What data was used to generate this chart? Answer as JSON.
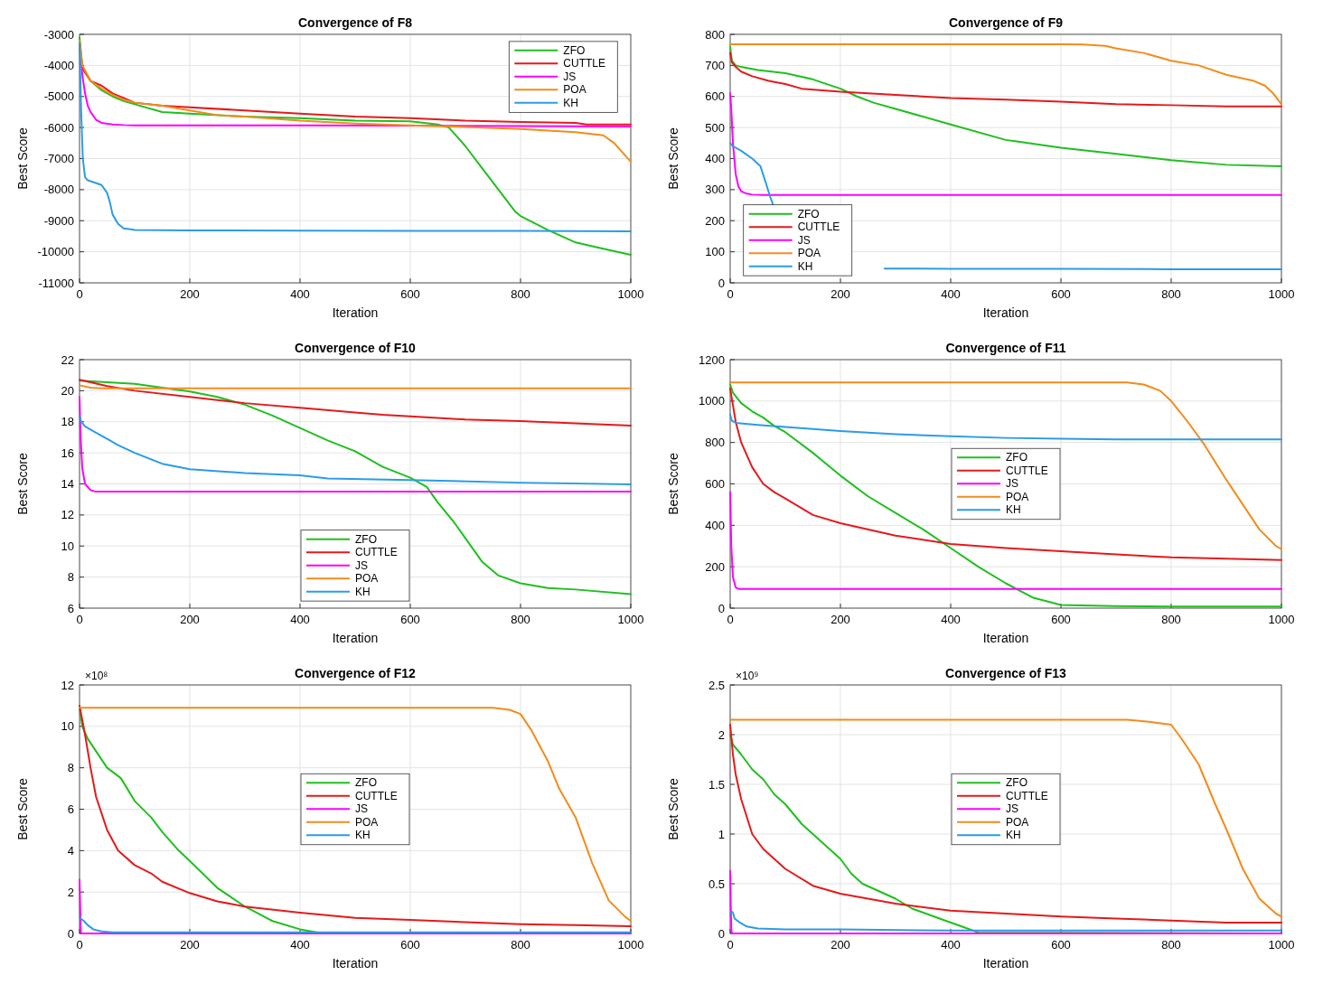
{
  "chart_data": [
    {
      "type": "line",
      "title": "Convergence of F8",
      "xlabel": "Iteration",
      "ylabel": "Best Score",
      "xlim": [
        0,
        1000
      ],
      "xticks": [
        0,
        200,
        400,
        600,
        800,
        1000
      ],
      "ylim": [
        -11000,
        -3000
      ],
      "yticks": [
        -11000,
        -10000,
        -9000,
        -8000,
        -7000,
        -6000,
        -5000,
        -4000,
        -3000
      ],
      "grid": true,
      "legend": "top right",
      "series": [
        {
          "name": "ZFO",
          "color": "#1fbf1f",
          "x": [
            0,
            5,
            20,
            40,
            60,
            80,
            100,
            150,
            200,
            300,
            400,
            500,
            600,
            650,
            670,
            700,
            730,
            760,
            790,
            800,
            850,
            900,
            950,
            1000
          ],
          "values": [
            -3100,
            -4000,
            -4500,
            -4800,
            -5000,
            -5150,
            -5250,
            -5500,
            -5550,
            -5650,
            -5700,
            -5780,
            -5800,
            -5900,
            -6000,
            -6600,
            -7300,
            -8000,
            -8700,
            -8850,
            -9300,
            -9700,
            -9900,
            -10100
          ]
        },
        {
          "name": "CUTTLE",
          "color": "#e41a1c",
          "x": [
            0,
            5,
            20,
            40,
            60,
            80,
            100,
            150,
            200,
            300,
            400,
            500,
            600,
            700,
            800,
            900,
            920,
            1000
          ],
          "values": [
            -3300,
            -4100,
            -4500,
            -4650,
            -4900,
            -5050,
            -5200,
            -5300,
            -5350,
            -5450,
            -5550,
            -5650,
            -5700,
            -5780,
            -5820,
            -5850,
            -5900,
            -5900
          ]
        },
        {
          "name": "JS",
          "color": "#ff00ff",
          "x": [
            0,
            2,
            5,
            10,
            15,
            20,
            30,
            40,
            60,
            80,
            100,
            200,
            400,
            600,
            800,
            1000
          ],
          "values": [
            -3300,
            -3700,
            -4300,
            -4900,
            -5300,
            -5500,
            -5750,
            -5850,
            -5900,
            -5920,
            -5930,
            -5930,
            -5930,
            -5940,
            -5950,
            -5970
          ]
        },
        {
          "name": "POA",
          "color": "#f28c1c",
          "x": [
            0,
            5,
            20,
            40,
            60,
            80,
            100,
            150,
            200,
            250,
            300,
            400,
            500,
            600,
            700,
            800,
            900,
            950,
            970,
            990,
            1000
          ],
          "values": [
            -3200,
            -4000,
            -4500,
            -4750,
            -4950,
            -5100,
            -5200,
            -5300,
            -5450,
            -5600,
            -5650,
            -5780,
            -5870,
            -5930,
            -5980,
            -6050,
            -6150,
            -6250,
            -6500,
            -6900,
            -7100
          ]
        },
        {
          "name": "KH",
          "color": "#2b9ce6",
          "x": [
            0,
            3,
            6,
            10,
            15,
            40,
            50,
            55,
            60,
            70,
            80,
            90,
            100,
            200,
            400,
            600,
            800,
            1000
          ],
          "values": [
            -3300,
            -5500,
            -7000,
            -7600,
            -7700,
            -7850,
            -8100,
            -8400,
            -8800,
            -9100,
            -9250,
            -9270,
            -9300,
            -9310,
            -9320,
            -9330,
            -9330,
            -9340
          ]
        }
      ]
    },
    {
      "type": "line",
      "title": "Convergence of F9",
      "xlabel": "Iteration",
      "ylabel": "Best Score",
      "xlim": [
        0,
        1000
      ],
      "xticks": [
        0,
        200,
        400,
        600,
        800,
        1000
      ],
      "ylim": [
        0,
        800
      ],
      "yticks": [
        0,
        100,
        200,
        300,
        400,
        500,
        600,
        700,
        800
      ],
      "grid": true,
      "legend": "bottom left",
      "series": [
        {
          "name": "ZFO",
          "color": "#1fbf1f",
          "x": [
            0,
            3,
            10,
            20,
            50,
            100,
            150,
            200,
            230,
            260,
            300,
            400,
            500,
            520,
            600,
            700,
            800,
            900,
            1000
          ],
          "values": [
            760,
            715,
            700,
            695,
            685,
            675,
            655,
            625,
            600,
            580,
            560,
            510,
            460,
            455,
            435,
            415,
            395,
            380,
            375
          ]
        },
        {
          "name": "CUTTLE",
          "color": "#e41a1c",
          "x": [
            0,
            3,
            10,
            20,
            40,
            70,
            100,
            130,
            200,
            300,
            400,
            500,
            600,
            700,
            800,
            900,
            1000
          ],
          "values": [
            740,
            710,
            695,
            680,
            665,
            650,
            640,
            625,
            615,
            605,
            595,
            590,
            583,
            575,
            572,
            568,
            568
          ]
        },
        {
          "name": "JS",
          "color": "#ff00ff",
          "x": [
            0,
            2,
            5,
            10,
            15,
            20,
            30,
            40,
            60,
            100,
            1000
          ],
          "values": [
            610,
            560,
            450,
            350,
            310,
            295,
            287,
            284,
            283,
            283,
            283
          ]
        },
        {
          "name": "POA",
          "color": "#f28c1c",
          "x": [
            0,
            600,
            640,
            680,
            700,
            750,
            800,
            850,
            900,
            950,
            970,
            985,
            1000
          ],
          "values": [
            768,
            768,
            767,
            763,
            755,
            740,
            715,
            700,
            670,
            650,
            635,
            610,
            575
          ]
        },
        {
          "name": "KH",
          "color": "#2b9ce6",
          "x": [
            0,
            5,
            20,
            40,
            55,
            65,
            72,
            78,
            150,
            280,
            400,
            600,
            800,
            1000
          ],
          "values": [
            450,
            440,
            425,
            400,
            375,
            320,
            280,
            250,
            null,
            46,
            45,
            45,
            44,
            44
          ]
        }
      ]
    },
    {
      "type": "line",
      "title": "Convergence of F10",
      "xlabel": "Iteration",
      "ylabel": "Best Score",
      "xlim": [
        0,
        1000
      ],
      "xticks": [
        0,
        200,
        400,
        600,
        800,
        1000
      ],
      "ylim": [
        6,
        22
      ],
      "yticks": [
        6,
        8,
        10,
        12,
        14,
        16,
        18,
        20,
        22
      ],
      "grid": true,
      "legend": "bottom",
      "series": [
        {
          "name": "ZFO",
          "color": "#1fbf1f",
          "x": [
            0,
            50,
            100,
            150,
            200,
            250,
            300,
            350,
            400,
            450,
            500,
            550,
            600,
            630,
            650,
            680,
            700,
            730,
            760,
            800,
            850,
            900,
            1000
          ],
          "values": [
            20.65,
            20.55,
            20.45,
            20.2,
            19.95,
            19.6,
            19.1,
            18.4,
            17.6,
            16.8,
            16.1,
            15.1,
            14.4,
            13.8,
            12.8,
            11.5,
            10.5,
            9.0,
            8.1,
            7.6,
            7.3,
            7.2,
            6.9
          ]
        },
        {
          "name": "CUTTLE",
          "color": "#e41a1c",
          "x": [
            0,
            50,
            100,
            200,
            300,
            400,
            500,
            550,
            600,
            700,
            800,
            900,
            1000
          ],
          "values": [
            20.7,
            20.3,
            20.0,
            19.6,
            19.2,
            18.9,
            18.6,
            18.45,
            18.35,
            18.15,
            18.05,
            17.9,
            17.75
          ]
        },
        {
          "name": "JS",
          "color": "#ff00ff",
          "x": [
            0,
            2,
            5,
            10,
            20,
            30,
            1000
          ],
          "values": [
            19.6,
            17,
            15,
            14,
            13.6,
            13.5,
            13.5
          ]
        },
        {
          "name": "POA",
          "color": "#f28c1c",
          "x": [
            0,
            20,
            40,
            1000
          ],
          "values": [
            20.35,
            20.2,
            20.15,
            20.15
          ]
        },
        {
          "name": "KH",
          "color": "#2b9ce6",
          "x": [
            0,
            3,
            10,
            30,
            50,
            70,
            100,
            150,
            200,
            300,
            400,
            450,
            600,
            800,
            1000
          ],
          "values": [
            18.4,
            18.0,
            17.7,
            17.3,
            16.9,
            16.5,
            16.0,
            15.3,
            14.95,
            14.7,
            14.55,
            14.35,
            14.25,
            14.08,
            13.97
          ]
        }
      ]
    },
    {
      "type": "line",
      "title": "Convergence of F11",
      "xlabel": "Iteration",
      "ylabel": "Best Score",
      "xlim": [
        0,
        1000
      ],
      "xticks": [
        0,
        200,
        400,
        600,
        800,
        1000
      ],
      "ylim": [
        0,
        1200
      ],
      "yticks": [
        0,
        200,
        400,
        600,
        800,
        1000,
        1200
      ],
      "grid": true,
      "legend": "center",
      "series": [
        {
          "name": "ZFO",
          "color": "#1fbf1f",
          "x": [
            0,
            5,
            20,
            40,
            60,
            80,
            100,
            150,
            200,
            250,
            300,
            350,
            400,
            450,
            500,
            550,
            600,
            700,
            800,
            1000
          ],
          "values": [
            1080,
            1040,
            990,
            950,
            920,
            880,
            850,
            750,
            640,
            540,
            460,
            380,
            290,
            200,
            120,
            50,
            15,
            10,
            8,
            8
          ]
        },
        {
          "name": "CUTTLE",
          "color": "#e41a1c",
          "x": [
            0,
            5,
            10,
            20,
            40,
            60,
            80,
            100,
            150,
            200,
            300,
            400,
            500,
            600,
            700,
            800,
            1000
          ],
          "values": [
            1060,
            980,
            900,
            800,
            680,
            600,
            560,
            530,
            450,
            410,
            350,
            310,
            290,
            275,
            260,
            245,
            232
          ]
        },
        {
          "name": "JS",
          "color": "#ff00ff",
          "x": [
            0,
            2,
            5,
            10,
            15,
            1000
          ],
          "values": [
            560,
            300,
            150,
            100,
            93,
            93
          ]
        },
        {
          "name": "POA",
          "color": "#f28c1c",
          "x": [
            0,
            720,
            750,
            780,
            800,
            830,
            860,
            900,
            930,
            960,
            990,
            1000
          ],
          "values": [
            1090,
            1090,
            1080,
            1050,
            1000,
            900,
            790,
            620,
            500,
            380,
            300,
            285
          ]
        },
        {
          "name": "KH",
          "color": "#2b9ce6",
          "x": [
            0,
            3,
            10,
            50,
            100,
            200,
            300,
            400,
            500,
            600,
            700,
            800,
            1000
          ],
          "values": [
            935,
            905,
            895,
            885,
            875,
            855,
            840,
            830,
            822,
            818,
            815,
            815,
            815
          ]
        }
      ]
    },
    {
      "type": "line",
      "title": "Convergence of F12",
      "xlabel": "Iteration",
      "ylabel": "Best Score",
      "annotations": [
        "×10⁸"
      ],
      "xlim": [
        0,
        1000
      ],
      "xticks": [
        0,
        200,
        400,
        600,
        800,
        1000
      ],
      "ylim": [
        0,
        12
      ],
      "yticks": [
        0,
        2,
        4,
        6,
        8,
        10,
        12
      ],
      "grid": true,
      "legend": "center",
      "series": [
        {
          "name": "ZFO",
          "color": "#1fbf1f",
          "x": [
            0,
            5,
            15,
            30,
            50,
            75,
            100,
            130,
            150,
            180,
            200,
            250,
            300,
            350,
            400,
            430,
            450,
            1000
          ],
          "values": [
            10.9,
            10.0,
            9.4,
            8.8,
            8.0,
            7.5,
            6.4,
            5.6,
            4.9,
            4.0,
            3.5,
            2.2,
            1.3,
            0.6,
            0.2,
            0.05,
            0,
            0
          ]
        },
        {
          "name": "CUTTLE",
          "color": "#e41a1c",
          "x": [
            0,
            5,
            10,
            20,
            30,
            50,
            70,
            100,
            130,
            150,
            200,
            250,
            300,
            400,
            500,
            600,
            700,
            800,
            900,
            1000
          ],
          "values": [
            11,
            10.3,
            9.6,
            8.0,
            6.6,
            5.0,
            4.0,
            3.3,
            2.9,
            2.5,
            1.95,
            1.55,
            1.3,
            1.0,
            0.75,
            0.65,
            0.55,
            0.45,
            0.4,
            0.35
          ]
        },
        {
          "name": "JS",
          "color": "#ff00ff",
          "x": [
            0,
            1,
            2,
            3,
            1000
          ],
          "values": [
            2.6,
            1.5,
            0.2,
            0,
            0
          ]
        },
        {
          "name": "POA",
          "color": "#f28c1c",
          "x": [
            0,
            750,
            780,
            800,
            820,
            850,
            870,
            900,
            930,
            960,
            990,
            1000
          ],
          "values": [
            10.9,
            10.9,
            10.8,
            10.6,
            9.8,
            8.3,
            7.0,
            5.6,
            3.4,
            1.6,
            0.8,
            0.6
          ]
        },
        {
          "name": "KH",
          "color": "#2b9ce6",
          "x": [
            0,
            3,
            8,
            15,
            25,
            40,
            60,
            100,
            1000
          ],
          "values": [
            0.8,
            0.7,
            0.6,
            0.4,
            0.2,
            0.1,
            0.05,
            0.05,
            0.05
          ]
        }
      ]
    },
    {
      "type": "line",
      "title": "Convergence of F13",
      "xlabel": "Iteration",
      "ylabel": "Best Score",
      "annotations": [
        "×10⁹"
      ],
      "xlim": [
        0,
        1000
      ],
      "xticks": [
        0,
        200,
        400,
        600,
        800,
        1000
      ],
      "ylim": [
        0,
        2.5
      ],
      "yticks": [
        0,
        0.5,
        1,
        1.5,
        2,
        2.5
      ],
      "grid": true,
      "legend": "center",
      "series": [
        {
          "name": "ZFO",
          "color": "#1fbf1f",
          "x": [
            0,
            5,
            20,
            40,
            60,
            80,
            100,
            130,
            160,
            200,
            220,
            240,
            260,
            300,
            330,
            380,
            420,
            450,
            1000
          ],
          "values": [
            2.0,
            1.9,
            1.8,
            1.65,
            1.55,
            1.4,
            1.3,
            1.1,
            0.95,
            0.75,
            0.6,
            0.5,
            0.45,
            0.35,
            0.25,
            0.15,
            0.07,
            0.01,
            0
          ]
        },
        {
          "name": "CUTTLE",
          "color": "#e41a1c",
          "x": [
            0,
            5,
            10,
            20,
            40,
            60,
            100,
            150,
            200,
            300,
            400,
            500,
            600,
            700,
            800,
            900,
            1000
          ],
          "values": [
            2.1,
            1.8,
            1.6,
            1.35,
            1.0,
            0.85,
            0.65,
            0.48,
            0.4,
            0.3,
            0.23,
            0.2,
            0.17,
            0.15,
            0.13,
            0.11,
            0.11
          ]
        },
        {
          "name": "JS",
          "color": "#ff00ff",
          "x": [
            0,
            1,
            2,
            3,
            1000
          ],
          "values": [
            0.63,
            0.3,
            0.05,
            0,
            0
          ]
        },
        {
          "name": "POA",
          "color": "#f28c1c",
          "x": [
            0,
            720,
            760,
            800,
            820,
            850,
            880,
            900,
            930,
            960,
            990,
            1000
          ],
          "values": [
            2.15,
            2.15,
            2.13,
            2.1,
            1.95,
            1.7,
            1.3,
            1.05,
            0.65,
            0.35,
            0.2,
            0.17
          ]
        },
        {
          "name": "KH",
          "color": "#2b9ce6",
          "x": [
            0,
            3,
            5,
            8,
            15,
            30,
            50,
            100,
            200,
            400,
            1000
          ],
          "values": [
            0.2,
            0.22,
            0.21,
            0.15,
            0.12,
            0.07,
            0.05,
            0.04,
            0.04,
            0.03,
            0.03
          ]
        }
      ]
    }
  ]
}
